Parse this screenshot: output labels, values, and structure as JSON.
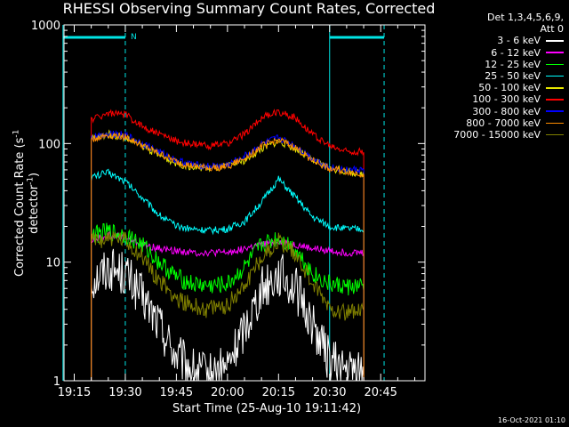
{
  "title": "RHESSI Observing Summary Count Rates, Corrected",
  "detector_info_line1": "Det 1,3,4,5,6,9,",
  "detector_info_line2": "Att 0",
  "xlabel": "Start Time (25-Aug-10 19:11:42)",
  "ylabel_prefix": "Corrected Count Rate (s",
  "ylabel_sup1": "-1",
  "ylabel_mid": " detector",
  "ylabel_sup2": "-1",
  "ylabel_suffix": ")",
  "timestamp": "16-Oct-2021 01:10",
  "colors": {
    "background": "#000000",
    "axes": "#ffffff",
    "cyan_markers": "#00e5e5"
  },
  "chart_data": {
    "type": "line",
    "yscale": "log",
    "ylim": [
      1,
      1000
    ],
    "xlim_minutes_since_1900": [
      1152,
      1258
    ],
    "x_tick_labels": [
      "19:15",
      "19:30",
      "19:45",
      "20:00",
      "20:15",
      "20:30",
      "20:45"
    ],
    "x_tick_minutes": [
      1155,
      1170,
      1185,
      1200,
      1215,
      1230,
      1245
    ],
    "y_tick_labels": [
      "1",
      "10",
      "100",
      "1000"
    ],
    "y_tick_values": [
      1,
      10,
      100,
      1000
    ],
    "data_start": "19:20",
    "data_end": "20:40",
    "x_times": [
      "19:20",
      "19:25",
      "19:30",
      "19:35",
      "19:40",
      "19:45",
      "19:50",
      "19:55",
      "20:00",
      "20:05",
      "20:10",
      "20:15",
      "20:20",
      "20:25",
      "20:30",
      "20:35",
      "20:40"
    ],
    "series": [
      {
        "name": "3 - 6 keV",
        "color": "#ffffff",
        "values": [
          7,
          9,
          8,
          5,
          3,
          1.6,
          1.2,
          1.1,
          1.3,
          2.8,
          6,
          8,
          6,
          3,
          1.5,
          1.2,
          1.2
        ]
      },
      {
        "name": "6 - 12 keV",
        "color": "#ff00ff",
        "values": [
          15,
          17,
          16,
          14,
          13,
          12.5,
          12,
          12,
          12,
          13,
          14,
          15,
          14,
          13,
          12.5,
          12,
          12
        ]
      },
      {
        "name": "12 - 25 keV",
        "color": "#00ff00",
        "values": [
          17,
          18,
          17,
          14,
          10,
          7.5,
          6.5,
          6.3,
          6.5,
          9,
          14,
          16,
          13,
          8,
          6.5,
          6.2,
          6.2
        ]
      },
      {
        "name": "25 - 50 keV",
        "color": "#00ffff",
        "values": [
          52,
          57,
          48,
          35,
          25,
          20,
          19,
          18.5,
          19,
          22,
          32,
          50,
          35,
          24,
          20,
          19,
          19
        ]
      },
      {
        "name": "50 - 100 keV",
        "color": "#e6e600",
        "values": [
          110,
          120,
          112,
          95,
          80,
          68,
          63,
          62,
          64,
          72,
          90,
          105,
          90,
          72,
          62,
          58,
          55
        ]
      },
      {
        "name": "100 - 300 keV",
        "color": "#ff0000",
        "values": [
          160,
          180,
          175,
          140,
          120,
          105,
          98,
          96,
          100,
          120,
          165,
          185,
          165,
          120,
          95,
          86,
          85
        ]
      },
      {
        "name": "300 - 800 keV",
        "color": "#0000ff",
        "values": [
          112,
          122,
          118,
          100,
          85,
          72,
          66,
          64,
          66,
          78,
          98,
          112,
          95,
          75,
          63,
          60,
          60
        ]
      },
      {
        "name": "800 - 7000 keV",
        "color": "#ff8c00",
        "values": [
          108,
          118,
          114,
          96,
          82,
          70,
          64,
          62,
          64,
          75,
          95,
          108,
          92,
          72,
          61,
          58,
          55
        ]
      },
      {
        "name": "7000 - 15000 keV",
        "color": "#808000",
        "values": [
          15,
          16,
          15,
          11,
          7,
          5,
          4.2,
          4,
          4.3,
          6.5,
          11,
          15,
          12,
          6.5,
          4.2,
          3.8,
          3.8
        ]
      }
    ],
    "annotations": [
      {
        "text": "N",
        "color": "#00e5e5",
        "position": "top near 19:30"
      }
    ],
    "cyan_bars": [
      {
        "start": "19:11:42",
        "end": "19:30"
      },
      {
        "start": "20:30",
        "end": "20:46"
      }
    ],
    "cyan_dashed_lines": [
      "19:30",
      "20:46"
    ],
    "cyan_solid_lines": [
      "19:11:42",
      "20:30"
    ],
    "grid": false,
    "legend": "top-right, outside plot"
  }
}
